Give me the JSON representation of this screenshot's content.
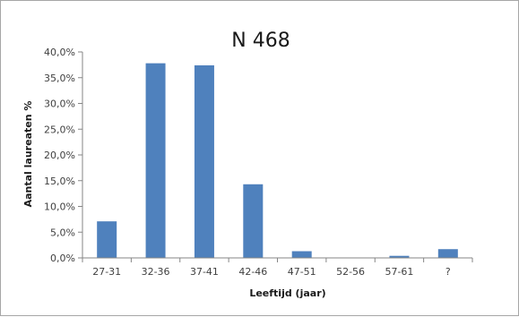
{
  "chart_data": {
    "type": "bar",
    "title": "N 468",
    "xlabel": "Leeftijd (jaar)",
    "ylabel": "Aantal laureaten %",
    "categories": [
      "27-31",
      "32-36",
      "37-41",
      "42-46",
      "47-51",
      "52-56",
      "57-61",
      "?"
    ],
    "values": [
      7.1,
      37.8,
      37.4,
      14.3,
      1.3,
      0.0,
      0.4,
      1.7
    ],
    "ylim": [
      0,
      40
    ],
    "yticks": [
      "0,0%",
      "5,0%",
      "10,0%",
      "15,0%",
      "20,0%",
      "25,0%",
      "30,0%",
      "35,0%",
      "40,0%"
    ],
    "grid": false,
    "legend": "none",
    "bar_color": "#4f81bd",
    "axis_color": "#868686"
  }
}
